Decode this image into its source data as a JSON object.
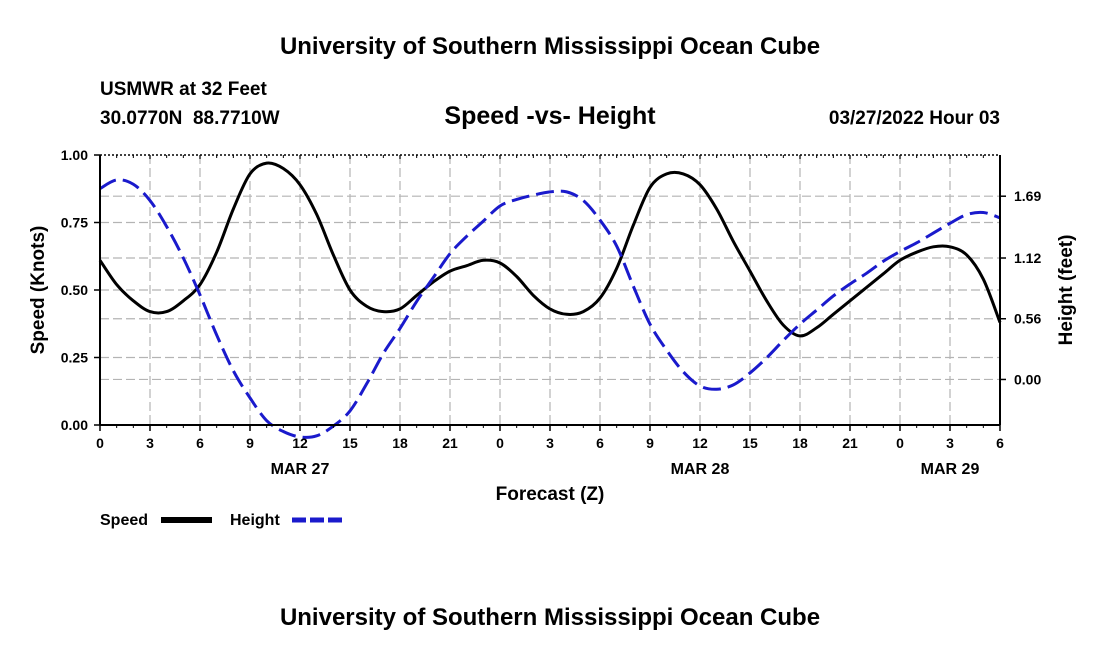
{
  "header": {
    "title": "University of Southern Mississippi Ocean Cube",
    "station": "USMWR at 32 Feet",
    "coords": "30.0770N  88.7710W",
    "chart_title": "Speed -vs- Height",
    "issued": "03/27/2022 Hour 03"
  },
  "footer": {
    "title": "University of Southern Mississippi Ocean Cube"
  },
  "colors": {
    "speed": "#000000",
    "height": "#1a1acc",
    "grid": "#b4b4b4"
  },
  "chart_data": {
    "type": "line",
    "title": "Speed -vs- Height",
    "xlabel": "Forecast (Z)",
    "ylabel_left": "Speed (Knots)",
    "ylabel_right": "Height (feet)",
    "grid": true,
    "legend_position": "bottom-left",
    "x_tick_labels": [
      "0",
      "3",
      "6",
      "9",
      "12",
      "15",
      "18",
      "21",
      "0",
      "3",
      "6",
      "9",
      "12",
      "15",
      "18",
      "21",
      "0",
      "3",
      "6"
    ],
    "date_labels": [
      {
        "label": "MAR 27",
        "hour": 12
      },
      {
        "label": "MAR 28",
        "hour": 36
      },
      {
        "label": "MAR 29",
        "hour": 51
      }
    ],
    "x_range_hours": [
      0,
      54
    ],
    "left_axis": {
      "ylim": [
        0,
        1.0
      ],
      "ticks": [
        "0.00",
        "0.25",
        "0.50",
        "0.75",
        "1.00"
      ]
    },
    "right_axis": {
      "ylim": [
        -0.42,
        2.07
      ],
      "ticks": [
        "0.00",
        "0.56",
        "1.12",
        "1.69"
      ]
    },
    "series": [
      {
        "name": "Speed",
        "axis": "left",
        "style": "solid",
        "points": [
          [
            0,
            0.61
          ],
          [
            1,
            0.52
          ],
          [
            2,
            0.46
          ],
          [
            3,
            0.42
          ],
          [
            4,
            0.42
          ],
          [
            5,
            0.46
          ],
          [
            6,
            0.52
          ],
          [
            7,
            0.64
          ],
          [
            8,
            0.8
          ],
          [
            9,
            0.93
          ],
          [
            10,
            0.97
          ],
          [
            11,
            0.95
          ],
          [
            12,
            0.89
          ],
          [
            13,
            0.78
          ],
          [
            14,
            0.63
          ],
          [
            15,
            0.5
          ],
          [
            16,
            0.44
          ],
          [
            17,
            0.42
          ],
          [
            18,
            0.43
          ],
          [
            19,
            0.48
          ],
          [
            20,
            0.53
          ],
          [
            21,
            0.57
          ],
          [
            22,
            0.59
          ],
          [
            23,
            0.61
          ],
          [
            24,
            0.6
          ],
          [
            25,
            0.55
          ],
          [
            26,
            0.48
          ],
          [
            27,
            0.43
          ],
          [
            28,
            0.41
          ],
          [
            29,
            0.42
          ],
          [
            30,
            0.47
          ],
          [
            31,
            0.58
          ],
          [
            32,
            0.74
          ],
          [
            33,
            0.88
          ],
          [
            34,
            0.93
          ],
          [
            35,
            0.93
          ],
          [
            36,
            0.89
          ],
          [
            37,
            0.8
          ],
          [
            38,
            0.68
          ],
          [
            39,
            0.57
          ],
          [
            40,
            0.46
          ],
          [
            41,
            0.37
          ],
          [
            42,
            0.33
          ],
          [
            43,
            0.36
          ],
          [
            44,
            0.41
          ],
          [
            45,
            0.46
          ],
          [
            46,
            0.51
          ],
          [
            47,
            0.56
          ],
          [
            48,
            0.61
          ],
          [
            49,
            0.64
          ],
          [
            50,
            0.66
          ],
          [
            51,
            0.66
          ],
          [
            52,
            0.63
          ],
          [
            53,
            0.54
          ],
          [
            54,
            0.38
          ]
        ]
      },
      {
        "name": "Height",
        "axis": "right",
        "style": "dashed",
        "points": [
          [
            0,
            1.76
          ],
          [
            1,
            1.84
          ],
          [
            2,
            1.8
          ],
          [
            3,
            1.65
          ],
          [
            4,
            1.41
          ],
          [
            5,
            1.12
          ],
          [
            6,
            0.78
          ],
          [
            7,
            0.41
          ],
          [
            8,
            0.08
          ],
          [
            9,
            -0.17
          ],
          [
            10,
            -0.38
          ],
          [
            11,
            -0.48
          ],
          [
            12,
            -0.53
          ],
          [
            13,
            -0.52
          ],
          [
            14,
            -0.43
          ],
          [
            15,
            -0.29
          ],
          [
            16,
            -0.04
          ],
          [
            17,
            0.24
          ],
          [
            18,
            0.47
          ],
          [
            19,
            0.72
          ],
          [
            20,
            0.94
          ],
          [
            21,
            1.16
          ],
          [
            22,
            1.32
          ],
          [
            23,
            1.46
          ],
          [
            24,
            1.6
          ],
          [
            25,
            1.66
          ],
          [
            26,
            1.7
          ],
          [
            27,
            1.73
          ],
          [
            28,
            1.73
          ],
          [
            29,
            1.65
          ],
          [
            30,
            1.47
          ],
          [
            31,
            1.23
          ],
          [
            32,
            0.86
          ],
          [
            33,
            0.51
          ],
          [
            34,
            0.27
          ],
          [
            35,
            0.07
          ],
          [
            36,
            -0.06
          ],
          [
            37,
            -0.09
          ],
          [
            38,
            -0.05
          ],
          [
            39,
            0.06
          ],
          [
            40,
            0.2
          ],
          [
            41,
            0.36
          ],
          [
            42,
            0.51
          ],
          [
            43,
            0.64
          ],
          [
            44,
            0.77
          ],
          [
            45,
            0.88
          ],
          [
            46,
            0.98
          ],
          [
            47,
            1.09
          ],
          [
            48,
            1.18
          ],
          [
            49,
            1.26
          ],
          [
            50,
            1.35
          ],
          [
            51,
            1.44
          ],
          [
            52,
            1.52
          ],
          [
            53,
            1.54
          ],
          [
            54,
            1.49
          ]
        ]
      }
    ]
  }
}
